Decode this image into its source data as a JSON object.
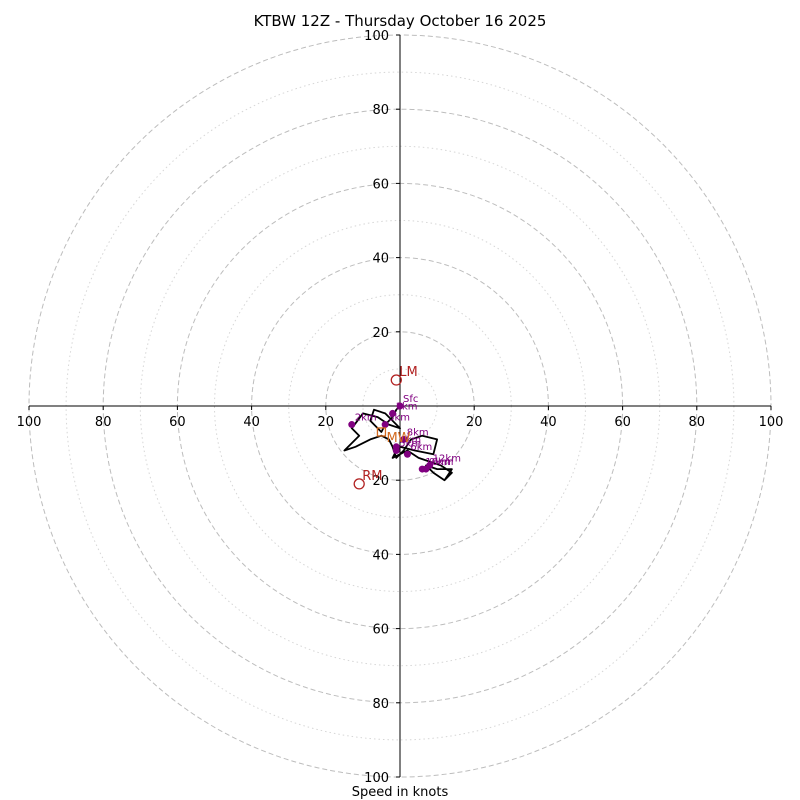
{
  "colors": {
    "ring_major": "#bdbdbd",
    "ring_minor": "#d6d6d6",
    "hodo_line": "#000000",
    "height_marker": "#800080",
    "motion": "#b22222",
    "mean_wind": "#d2691e"
  },
  "chart_data": {
    "type": "scatter",
    "title": "KTBW 12Z - Thursday October 16 2025",
    "xlabel": "Speed in knots",
    "ylabel": "",
    "xlim": [
      -100,
      100
    ],
    "ylim": [
      -100,
      100
    ],
    "major_rings": [
      20,
      40,
      60,
      80,
      100
    ],
    "minor_rings": [
      10,
      30,
      50,
      70,
      90
    ],
    "grid": true,
    "xticks": [
      {
        "value": -100,
        "label": "100"
      },
      {
        "value": -80,
        "label": "80"
      },
      {
        "value": -60,
        "label": "60"
      },
      {
        "value": -40,
        "label": "40"
      },
      {
        "value": -20,
        "label": "20"
      },
      {
        "value": 20,
        "label": "20"
      },
      {
        "value": 40,
        "label": "40"
      },
      {
        "value": 60,
        "label": "60"
      },
      {
        "value": 80,
        "label": "80"
      },
      {
        "value": 100,
        "label": "100"
      }
    ],
    "yticks": [
      {
        "value": 100,
        "label": "100"
      },
      {
        "value": 80,
        "label": "80"
      },
      {
        "value": 60,
        "label": "60"
      },
      {
        "value": 40,
        "label": "40"
      },
      {
        "value": 20,
        "label": "20"
      },
      {
        "value": -20,
        "label": "20"
      },
      {
        "value": -40,
        "label": "40"
      },
      {
        "value": -60,
        "label": "60"
      },
      {
        "value": -80,
        "label": "80"
      },
      {
        "value": -100,
        "label": "100"
      }
    ],
    "hodograph": {
      "u": [
        0,
        -1,
        -2,
        -4,
        -5,
        -8,
        -7,
        -4,
        -2,
        0,
        -3,
        -6,
        -10,
        -13,
        -11,
        -15,
        -12,
        -8,
        -5,
        -3,
        -2,
        -1,
        1,
        3,
        6,
        10,
        9,
        4,
        0,
        -1,
        -2,
        0,
        2,
        5,
        8,
        11,
        14,
        12,
        9,
        7,
        10,
        14,
        12
      ],
      "v": [
        0,
        -1,
        -3,
        -5,
        -7,
        -4,
        -1,
        -2,
        -4,
        -6,
        -5,
        -3,
        -2,
        -6,
        -8,
        -12,
        -11,
        -9,
        -8,
        -9,
        -11,
        -14,
        -12,
        -9,
        -8,
        -9,
        -13,
        -12,
        -11,
        -12,
        -14,
        -13,
        -12,
        -14,
        -15,
        -16,
        -18,
        -20,
        -18,
        -16,
        -17,
        -17,
        -20
      ]
    },
    "height_markers": [
      {
        "label": "Sfc",
        "u": 0,
        "v": 0
      },
      {
        "label": "1km",
        "u": -2,
        "v": -2
      },
      {
        "label": "2km",
        "u": -13,
        "v": -5
      },
      {
        "label": "3km",
        "u": -4,
        "v": -5
      },
      {
        "label": "4km",
        "u": -1,
        "v": -11
      },
      {
        "label": "5km",
        "u": -1,
        "v": -12
      },
      {
        "label": "6km",
        "u": 2,
        "v": -13
      },
      {
        "label": "8km",
        "u": 1,
        "v": -9
      },
      {
        "label": "9km",
        "u": 7,
        "v": -17
      },
      {
        "label": "10km",
        "u": 6,
        "v": -17
      },
      {
        "label": "12km",
        "u": 8,
        "v": -16
      }
    ],
    "storm_motion": [
      {
        "label": "LM",
        "u": -1,
        "v": 7
      },
      {
        "label": "RM",
        "u": -11,
        "v": -21
      }
    ],
    "mean_wind": {
      "label": "MW",
      "u": -5,
      "v": -7
    }
  }
}
